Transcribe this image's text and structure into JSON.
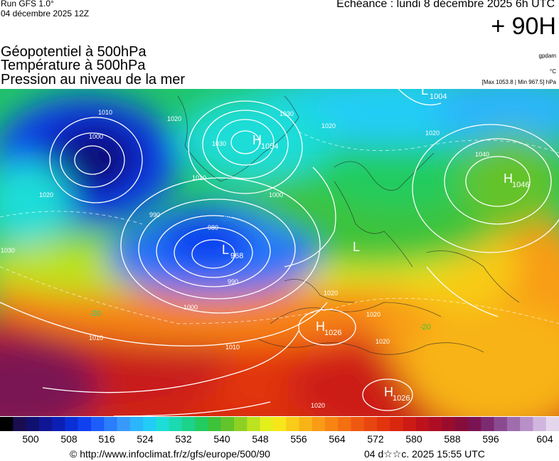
{
  "header": {
    "run": "Run GFS 1.0°",
    "run_date": "04 décembre 2025 12Z",
    "echeance": "Echéance : lundi 8 décembre 2025 6h UTC",
    "hour": "+ 90H"
  },
  "titles": {
    "line1": "Géopotentiel à 500hPa",
    "line2": "Température à 500hPa",
    "line3": "Pression au niveau de la mer"
  },
  "units": {
    "geopotential": "gpdam",
    "temperature": "°C",
    "max_min": "[Max 1053.8 | Min 967.5] hPa"
  },
  "map": {
    "pressure_centers": [
      {
        "type": "H",
        "value": "1054"
      },
      {
        "type": "H",
        "value": "1046"
      },
      {
        "type": "H",
        "value": "1026"
      },
      {
        "type": "H",
        "value": "1026"
      },
      {
        "type": "L",
        "value": "968"
      },
      {
        "type": "L",
        "value": "1004"
      },
      {
        "type": "L",
        "value": ""
      }
    ],
    "isobar_labels": [
      "1010",
      "1000",
      "1020",
      "1030",
      "1020",
      "1000",
      "990",
      "980",
      "990",
      "1000",
      "1010",
      "1020",
      "1030",
      "1020",
      "1030",
      "1020",
      "1010",
      "1020",
      "1040",
      "1020",
      "1010",
      "1020"
    ],
    "temperature_labels": [
      "-20",
      "-30",
      "-20"
    ]
  },
  "colorbar": {
    "colors": [
      "#000000",
      "#1a0d4f",
      "#10106e",
      "#101596",
      "#0b1fb5",
      "#0a2fd6",
      "#1040f0",
      "#1d5dfa",
      "#2a7dfb",
      "#3999fb",
      "#2bb5fb",
      "#21cdf6",
      "#1dddd8",
      "#1bdab0",
      "#1cd38a",
      "#22cc5f",
      "#3dc33a",
      "#63c32a",
      "#8ed124",
      "#bde21f",
      "#e4ef1c",
      "#f7e71a",
      "#f8cc18",
      "#f8b416",
      "#f89c15",
      "#f78413",
      "#f46e12",
      "#ef5811",
      "#e94510",
      "#e2340f",
      "#d9260f",
      "#cc1a14",
      "#bd121c",
      "#ad0e24",
      "#990c2c",
      "#860d3a",
      "#7a1352",
      "#7d2a72",
      "#8a4a90",
      "#9f6cae",
      "#b890c8",
      "#d0b6de",
      "#e4d6ec"
    ],
    "ticks": [
      "500",
      "508",
      "516",
      "524",
      "532",
      "540",
      "548",
      "556",
      "564",
      "572",
      "580",
      "588",
      "596",
      "604"
    ]
  },
  "footer": {
    "copyright": "© http://www.infoclimat.fr/z/gfs/europe/500/90",
    "timestamp": "04 d☆☆c. 2025 15:55 UTC"
  }
}
